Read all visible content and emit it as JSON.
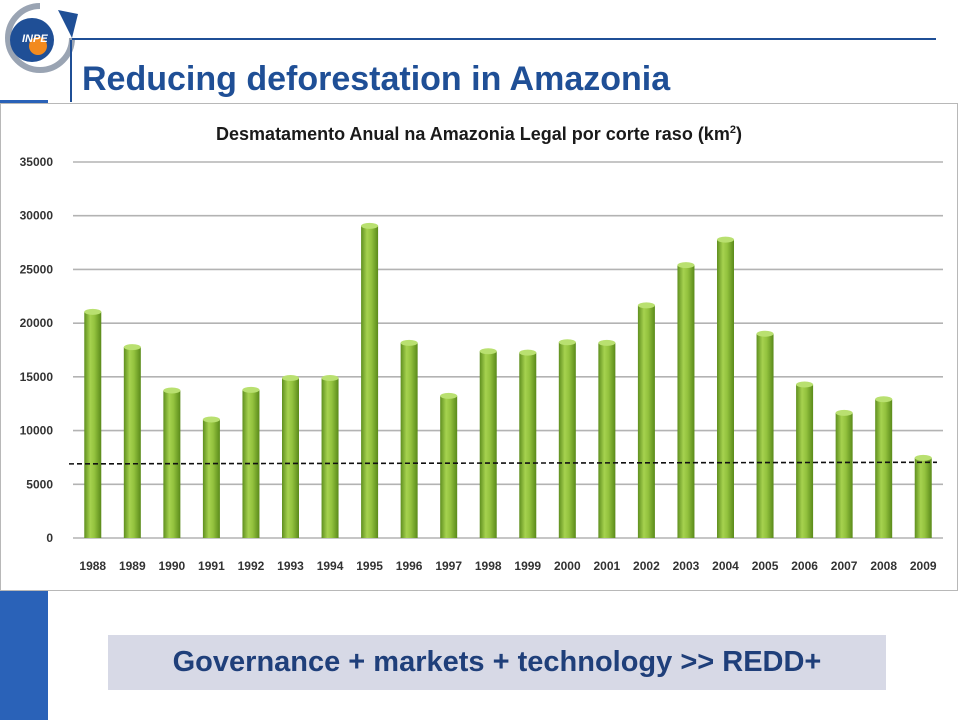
{
  "slide": {
    "title": "Reducing deforestation in Amazonia",
    "footer": "Governance + markets + technology >> REDD+",
    "logo_text": "INPE"
  },
  "colors": {
    "accent": "#1f4f96",
    "left_bar": "#2a62b8",
    "bar_fill": "#8fc33a",
    "footer_bg": "#d7d9e6"
  },
  "chart_data": {
    "type": "bar",
    "title": "Desmatamento Anual na Amazonia Legal por corte raso (km",
    "title_superscript": "2",
    "title_end": ")",
    "categories": [
      "1988",
      "1989",
      "1990",
      "1991",
      "1992",
      "1993",
      "1994",
      "1995",
      "1996",
      "1997",
      "1998",
      "1999",
      "2000",
      "2001",
      "2002",
      "2003",
      "2004",
      "2005",
      "2006",
      "2007",
      "2008",
      "2009"
    ],
    "values": [
      21050,
      17770,
      13730,
      11030,
      13786,
      14896,
      14896,
      29059,
      18161,
      13227,
      17383,
      17259,
      18226,
      18165,
      21651,
      25396,
      27772,
      19014,
      14286,
      11651,
      12911,
      7464
    ],
    "ylim": [
      0,
      35000
    ],
    "yticks": [
      "0",
      "5000",
      "10000",
      "15000",
      "20000",
      "25000",
      "30000",
      "35000"
    ],
    "ytick_values": [
      0,
      5000,
      10000,
      15000,
      20000,
      25000,
      30000,
      35000
    ],
    "grid": true,
    "reference_line": {
      "style": "dashed",
      "y_start": 6900,
      "y_end": 7050
    }
  }
}
